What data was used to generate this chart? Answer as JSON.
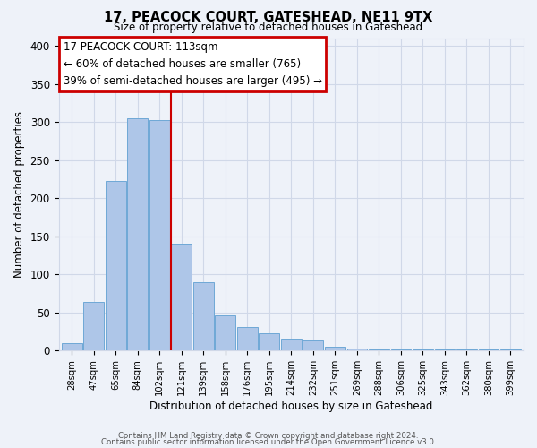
{
  "title": "17, PEACOCK COURT, GATESHEAD, NE11 9TX",
  "subtitle": "Size of property relative to detached houses in Gateshead",
  "xlabel": "Distribution of detached houses by size in Gateshead",
  "ylabel": "Number of detached properties",
  "footer_line1": "Contains HM Land Registry data © Crown copyright and database right 2024.",
  "footer_line2": "Contains public sector information licensed under the Open Government Licence v3.0.",
  "bin_labels": [
    "28sqm",
    "47sqm",
    "65sqm",
    "84sqm",
    "102sqm",
    "121sqm",
    "139sqm",
    "158sqm",
    "176sqm",
    "195sqm",
    "214sqm",
    "232sqm",
    "251sqm",
    "269sqm",
    "288sqm",
    "306sqm",
    "325sqm",
    "343sqm",
    "362sqm",
    "380sqm",
    "399sqm"
  ],
  "bar_values": [
    10,
    64,
    222,
    305,
    303,
    140,
    90,
    46,
    31,
    23,
    16,
    13,
    5,
    3,
    2,
    2,
    1,
    1,
    1,
    1,
    1
  ],
  "bar_color": "#aec6e8",
  "bar_edge_color": "#6fa8d6",
  "property_bin_index": 5,
  "vline_color": "#cc0000",
  "annotation_line1": "17 PEACOCK COURT: 113sqm",
  "annotation_line2": "← 60% of detached houses are smaller (765)",
  "annotation_line3": "39% of semi-detached houses are larger (495) →",
  "annotation_box_color": "#cc0000",
  "ylim": [
    0,
    410
  ],
  "yticks": [
    0,
    50,
    100,
    150,
    200,
    250,
    300,
    350,
    400
  ],
  "grid_color": "#d0d8e8",
  "background_color": "#eef2f9"
}
